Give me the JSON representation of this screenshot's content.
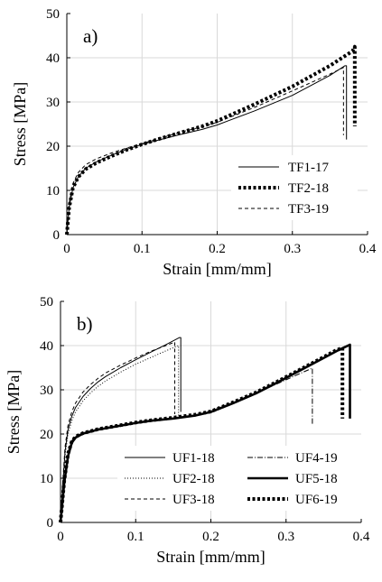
{
  "chart_data": [
    {
      "type": "line",
      "panel_label": "a)",
      "xlabel": "Strain [mm/mm]",
      "ylabel": "Stress [MPa]",
      "xlim": [
        0,
        0.4
      ],
      "ylim": [
        0,
        50
      ],
      "xticks": [
        "0",
        "0.1",
        "0.2",
        "0.3",
        "0.4"
      ],
      "yticks": [
        "0",
        "10",
        "20",
        "30",
        "40",
        "50"
      ],
      "grid": true,
      "legend_position": "bottom-right",
      "series": [
        {
          "name": "TF1-17",
          "style": "solid-thin",
          "x": [
            0,
            0.003,
            0.008,
            0.015,
            0.025,
            0.04,
            0.06,
            0.08,
            0.1,
            0.12,
            0.15,
            0.18,
            0.2,
            0.25,
            0.3,
            0.35,
            0.37,
            0.372,
            0.372
          ],
          "y": [
            0,
            6,
            10.5,
            13,
            15,
            16.5,
            18,
            19.3,
            20.4,
            21.3,
            22.6,
            23.8,
            24.8,
            28.0,
            31.5,
            36.0,
            38.2,
            38.2,
            21.5
          ]
        },
        {
          "name": "TF2-18",
          "style": "thick-dotted",
          "x": [
            0,
            0.003,
            0.008,
            0.015,
            0.025,
            0.04,
            0.06,
            0.08,
            0.1,
            0.12,
            0.15,
            0.18,
            0.2,
            0.25,
            0.3,
            0.35,
            0.38,
            0.383,
            0.383
          ],
          "y": [
            0,
            6,
            10.5,
            13,
            14.8,
            16.3,
            17.8,
            19.2,
            20.4,
            21.5,
            23,
            24.5,
            25.7,
            29.5,
            33.5,
            38.2,
            41.5,
            42.5,
            24.5
          ]
        },
        {
          "name": "TF3-19",
          "style": "dashed-thin",
          "x": [
            0,
            0.003,
            0.008,
            0.015,
            0.025,
            0.04,
            0.06,
            0.08,
            0.1,
            0.12,
            0.15,
            0.18,
            0.2,
            0.25,
            0.3,
            0.35,
            0.368,
            0.368
          ],
          "y": [
            0,
            7,
            11.5,
            14,
            15.8,
            17.2,
            18.5,
            19.6,
            20.6,
            21.6,
            23.1,
            24.4,
            25.4,
            28.8,
            32.5,
            36.3,
            37.8,
            22.5
          ]
        }
      ]
    },
    {
      "type": "line",
      "panel_label": "b)",
      "xlabel": "Strain [mm/mm]",
      "ylabel": "Stress [MPa]",
      "xlim": [
        0,
        0.4
      ],
      "ylim": [
        0,
        50
      ],
      "xticks": [
        "0",
        "0.1",
        "0.2",
        "0.3",
        "0.4"
      ],
      "yticks": [
        "0",
        "10",
        "20",
        "30",
        "40",
        "50"
      ],
      "grid": true,
      "legend_position": "bottom-right",
      "series": [
        {
          "name": "UF1-18",
          "style": "solid-thin",
          "x": [
            0,
            0.003,
            0.006,
            0.01,
            0.015,
            0.02,
            0.03,
            0.04,
            0.05,
            0.06,
            0.08,
            0.1,
            0.12,
            0.14,
            0.158,
            0.16,
            0.16
          ],
          "y": [
            0,
            8,
            16,
            21,
            24,
            26,
            28.5,
            30.3,
            31.8,
            33,
            35,
            36.8,
            38.5,
            40.2,
            41.8,
            41.8,
            25
          ]
        },
        {
          "name": "UF2-18",
          "style": "dotted-thin",
          "x": [
            0,
            0.003,
            0.006,
            0.01,
            0.015,
            0.02,
            0.03,
            0.04,
            0.05,
            0.06,
            0.08,
            0.1,
            0.12,
            0.14,
            0.157,
            0.157
          ],
          "y": [
            0,
            7.5,
            15,
            20,
            23,
            25,
            27.5,
            29.3,
            30.8,
            32,
            34,
            35.8,
            37.3,
            38.8,
            40,
            24
          ]
        },
        {
          "name": "UF3-18",
          "style": "dashed-thin",
          "x": [
            0,
            0.003,
            0.006,
            0.01,
            0.015,
            0.02,
            0.03,
            0.04,
            0.05,
            0.06,
            0.08,
            0.1,
            0.12,
            0.14,
            0.152,
            0.152
          ],
          "y": [
            0,
            9,
            17,
            22,
            25,
            27,
            29.5,
            31.2,
            32.6,
            33.8,
            35.6,
            37.2,
            38.7,
            40,
            40.8,
            24.5
          ]
        },
        {
          "name": "UF4-19",
          "style": "dash-dot-thin",
          "x": [
            0,
            0.005,
            0.01,
            0.015,
            0.02,
            0.03,
            0.05,
            0.08,
            0.1,
            0.12,
            0.15,
            0.18,
            0.2,
            0.23,
            0.26,
            0.29,
            0.32,
            0.335,
            0.335
          ],
          "y": [
            0,
            10,
            16,
            18.5,
            19.5,
            20.3,
            21.2,
            22,
            22.6,
            23,
            23.6,
            24.3,
            25,
            27,
            29.2,
            31.5,
            33.8,
            34.9,
            22
          ]
        },
        {
          "name": "UF5-18",
          "style": "solid-thick",
          "x": [
            0,
            0.005,
            0.01,
            0.015,
            0.02,
            0.03,
            0.05,
            0.08,
            0.1,
            0.12,
            0.15,
            0.18,
            0.2,
            0.23,
            0.26,
            0.29,
            0.32,
            0.35,
            0.37,
            0.385,
            0.385
          ],
          "y": [
            0,
            9,
            15,
            18,
            19.2,
            20.1,
            21,
            21.9,
            22.5,
            23,
            23.5,
            24.2,
            25,
            27,
            29.2,
            31.8,
            34.5,
            37.2,
            39,
            40.2,
            23.5
          ]
        },
        {
          "name": "UF6-19",
          "style": "thick-dotted",
          "x": [
            0,
            0.005,
            0.01,
            0.015,
            0.02,
            0.03,
            0.05,
            0.08,
            0.1,
            0.12,
            0.15,
            0.18,
            0.2,
            0.23,
            0.26,
            0.29,
            0.32,
            0.35,
            0.365,
            0.375,
            0.375
          ],
          "y": [
            0,
            9.5,
            15.5,
            18.3,
            19.4,
            20.2,
            21.1,
            22,
            22.6,
            23.1,
            23.7,
            24.4,
            25.1,
            27.2,
            29.4,
            32,
            34.7,
            37.4,
            38.8,
            39.5,
            23.5
          ]
        }
      ]
    }
  ]
}
